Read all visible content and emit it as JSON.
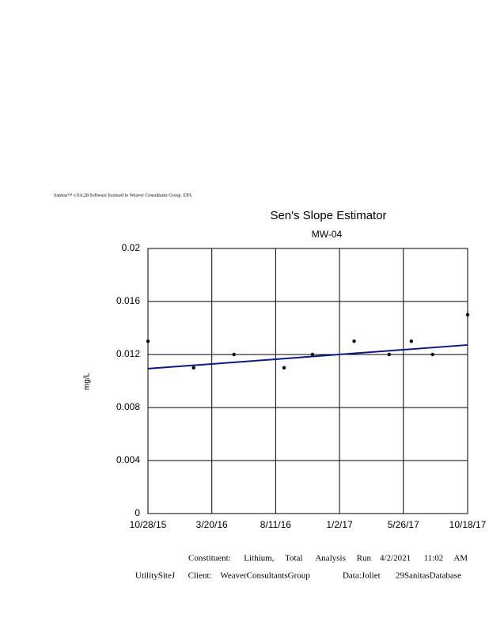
{
  "header": "Sanitas™ v.9.6.28 Software licensed to Weaver Consultants Group. EPA",
  "chart_data": {
    "type": "scatter",
    "title": "Sen's Slope Estimator",
    "subtitle": "MW-04",
    "y_label": "mg/L",
    "x": [
      "2015-10-28",
      "2016-02-08",
      "2016-05-09",
      "2016-08-30",
      "2016-11-02",
      "2017-02-04",
      "2017-04-24",
      "2017-06-13",
      "2017-07-31",
      "2017-10-18"
    ],
    "values": [
      0.013,
      0.011,
      0.012,
      0.011,
      0.012,
      0.013,
      0.012,
      0.013,
      0.012,
      0.015
    ],
    "color": "#000000",
    "trend_line": {
      "x": [
        "2015-10-28",
        "2017-10-18"
      ],
      "values": [
        0.01093,
        0.01272
      ],
      "color": "#0a1a80"
    },
    "xlim": [
      "2015-10-28",
      "2017-10-18"
    ],
    "xticks": [
      {
        "value": "2015-10-28",
        "label": "10/28/15"
      },
      {
        "value": "2016-03-20",
        "label": "3/20/16"
      },
      {
        "value": "2016-08-11",
        "label": "8/11/16"
      },
      {
        "value": "2017-01-02",
        "label": "1/2/17"
      },
      {
        "value": "2017-05-26",
        "label": "5/26/17"
      },
      {
        "value": "2017-10-18",
        "label": "10/18/17"
      }
    ],
    "ylim": [
      0,
      0.02
    ],
    "yticks": [
      0,
      0.004,
      0.008,
      0.012,
      0.016,
      0.02
    ],
    "grid": true
  },
  "footer": {
    "line1": "Constituent:      Lithium,     Total      Analysis     Run    4/2/2021      11:02     AM",
    "line2": "UtilitySiteJ      Client:    WeaverConsultantsGroup               Data:Joliet       29SanitasDatabase"
  }
}
